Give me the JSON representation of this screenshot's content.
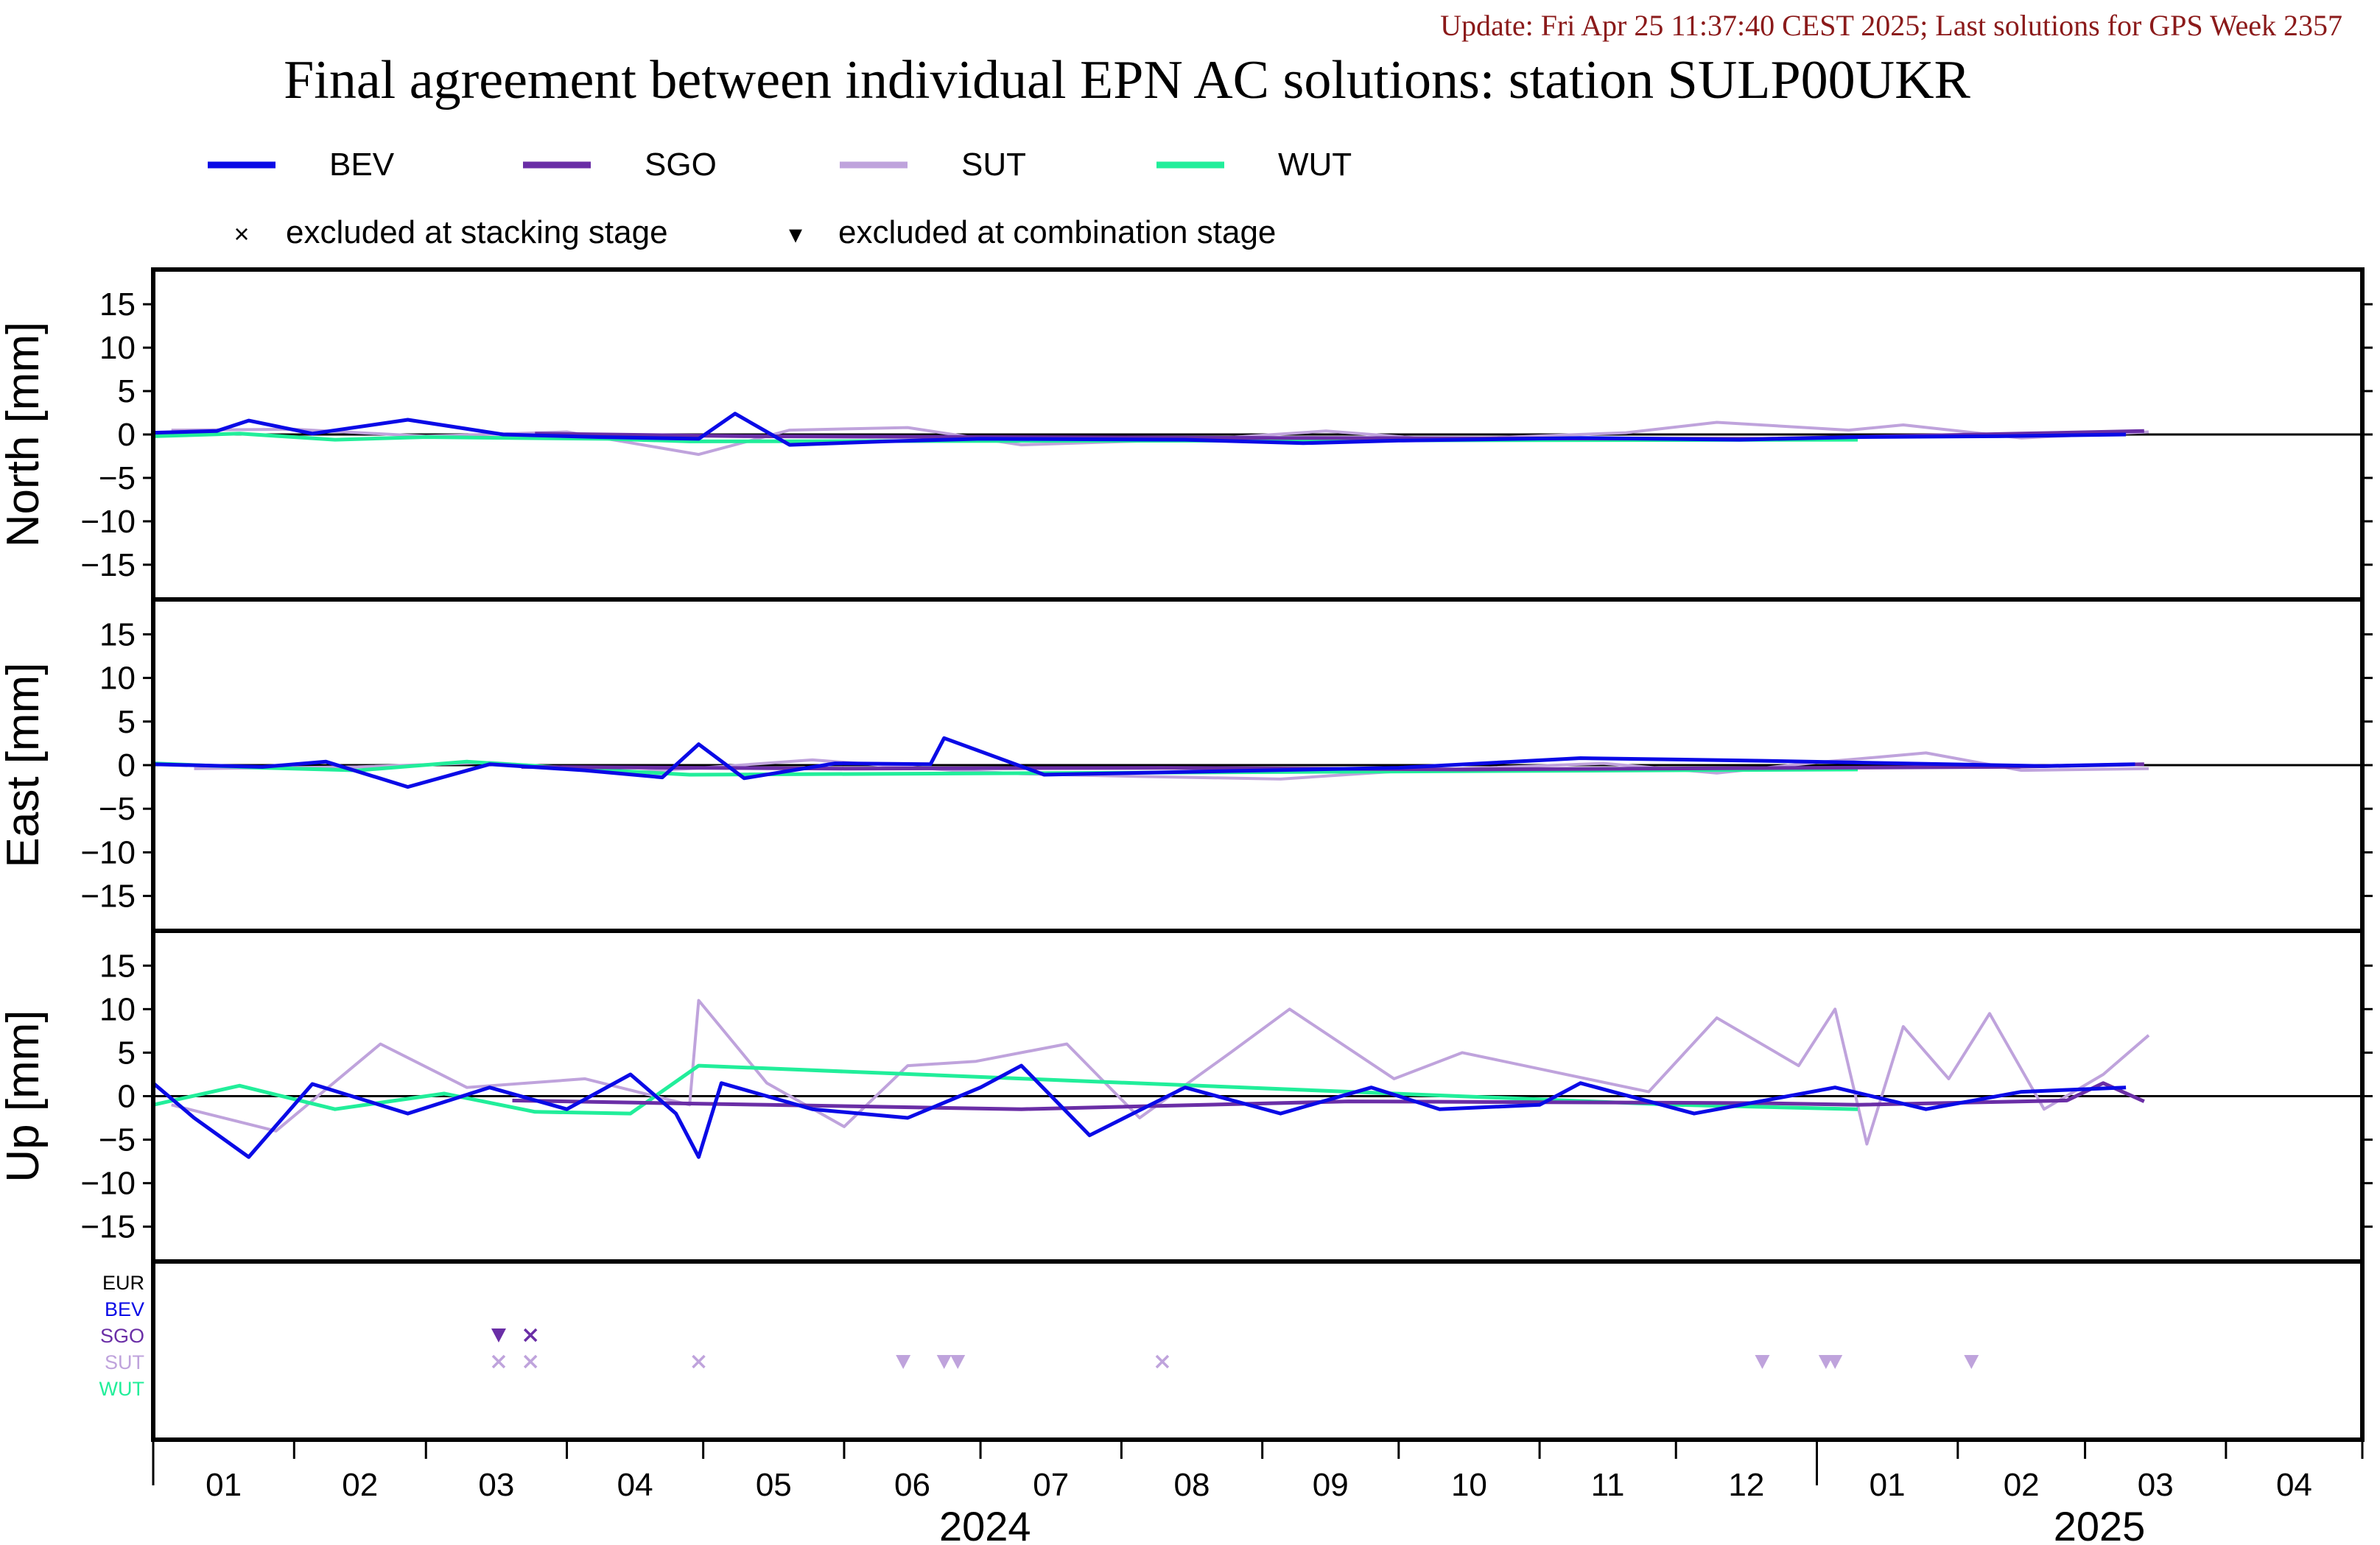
{
  "header": {
    "update_text": "Update: Fri Apr 25 11:37:40 CEST 2025; Last solutions for GPS Week 2357",
    "title": "Final agreement between individual EPN AC solutions: station SULP00UKR"
  },
  "legend": {
    "lines": [
      {
        "name": "BEV",
        "color": "#0a0ae6"
      },
      {
        "name": "SGO",
        "color": "#6a2ea6"
      },
      {
        "name": "SUT",
        "color": "#bfa3dc"
      },
      {
        "name": "WUT",
        "color": "#21ee9a"
      }
    ],
    "markers": [
      {
        "symbol": "×",
        "label": "excluded at stacking stage"
      },
      {
        "symbol": "▾",
        "label": "excluded at combination stage"
      }
    ]
  },
  "exclusion_panel": {
    "rows": [
      {
        "name": "EUR",
        "color": "#000000"
      },
      {
        "name": "BEV",
        "color": "#0a0ae6"
      },
      {
        "name": "SGO",
        "color": "#6a2ea6"
      },
      {
        "name": "SUT",
        "color": "#bfa3dc"
      },
      {
        "name": "WUT",
        "color": "#21ee9a"
      }
    ]
  },
  "x_axis": {
    "month_labels": [
      "01",
      "02",
      "03",
      "04",
      "05",
      "06",
      "07",
      "08",
      "09",
      "10",
      "11",
      "12",
      "01",
      "02",
      "03",
      "04"
    ],
    "year_labels": [
      "2024",
      "2025"
    ]
  },
  "chart_data": [
    {
      "type": "line",
      "panel": "north",
      "ylabel": "North [mm]",
      "ylim": [
        -19,
        19
      ],
      "yticks": [
        15,
        10,
        5,
        0,
        -5,
        -10,
        -15
      ],
      "xlim": [
        "2024-01-01",
        "2025-04-30"
      ],
      "series": [
        {
          "name": "BEV",
          "x": [
            "2024-01-01",
            "2024-01-15",
            "2024-01-22",
            "2024-02-05",
            "2024-02-26",
            "2024-03-18",
            "2024-04-08",
            "2024-04-30",
            "2024-05-08",
            "2024-05-20",
            "2024-06-10",
            "2024-07-01",
            "2024-08-15",
            "2024-09-10",
            "2024-10-01",
            "2024-11-10",
            "2024-12-15",
            "2025-01-10",
            "2025-02-10",
            "2025-03-10"
          ],
          "y": [
            0.2,
            0.4,
            1.6,
            0.1,
            1.7,
            0.0,
            -0.3,
            -0.5,
            2.4,
            -1.2,
            -0.8,
            -0.5,
            -0.6,
            -1.0,
            -0.7,
            -0.4,
            -0.6,
            -0.3,
            -0.2,
            0.0
          ]
        },
        {
          "name": "SGO",
          "x": [
            "2024-03-25",
            "2024-05-10",
            "2024-07-05",
            "2024-09-05",
            "2024-12-20",
            "2025-02-15",
            "2025-03-14"
          ],
          "y": [
            0.1,
            -0.2,
            -0.3,
            -0.4,
            -0.5,
            0.1,
            0.4
          ]
        },
        {
          "name": "SUT",
          "x": [
            "2024-01-05",
            "2024-02-01",
            "2024-03-01",
            "2024-04-01",
            "2024-04-30",
            "2024-05-20",
            "2024-06-15",
            "2024-07-10",
            "2024-08-20",
            "2024-09-15",
            "2024-10-10",
            "2024-11-20",
            "2024-12-10",
            "2025-01-08",
            "2025-01-20",
            "2025-02-15",
            "2025-03-15"
          ],
          "y": [
            0.5,
            0.6,
            -0.2,
            0.3,
            -2.3,
            0.5,
            0.8,
            -1.2,
            -0.5,
            0.4,
            -0.6,
            0.2,
            1.4,
            0.5,
            1.1,
            -0.4,
            0.3
          ]
        },
        {
          "name": "WUT",
          "x": [
            "2024-01-01",
            "2024-01-20",
            "2024-02-10",
            "2024-03-01",
            "2024-03-20",
            "2024-04-10",
            "2024-04-28",
            "2025-01-10"
          ],
          "y": [
            -0.2,
            0.1,
            -0.6,
            -0.3,
            -0.4,
            -0.5,
            -0.8,
            -0.6
          ]
        }
      ]
    },
    {
      "type": "line",
      "panel": "east",
      "ylabel": "East [mm]",
      "ylim": [
        -19,
        19
      ],
      "yticks": [
        15,
        10,
        5,
        0,
        -5,
        -10,
        -15
      ],
      "xlim": [
        "2024-01-01",
        "2025-04-30"
      ],
      "series": [
        {
          "name": "BEV",
          "x": [
            "2024-01-01",
            "2024-01-25",
            "2024-02-08",
            "2024-02-26",
            "2024-03-15",
            "2024-04-05",
            "2024-04-22",
            "2024-04-30",
            "2024-05-10",
            "2024-05-30",
            "2024-06-20",
            "2024-06-23",
            "2024-07-15",
            "2024-09-01",
            "2024-10-01",
            "2024-11-10",
            "2024-12-20",
            "2025-02-20",
            "2025-03-12"
          ],
          "y": [
            0.1,
            -0.2,
            0.4,
            -2.5,
            0.1,
            -0.6,
            -1.4,
            2.4,
            -1.5,
            0.2,
            0.1,
            3.1,
            -1.1,
            -0.6,
            -0.3,
            0.8,
            0.5,
            -0.1,
            0.1
          ]
        },
        {
          "name": "SGO",
          "x": [
            "2024-03-22",
            "2024-06-01",
            "2024-08-10",
            "2024-10-15",
            "2025-02-12",
            "2025-03-14"
          ],
          "y": [
            -0.2,
            -0.4,
            -0.3,
            -0.5,
            -0.2,
            0.1
          ]
        },
        {
          "name": "SUT",
          "x": [
            "2024-01-10",
            "2024-02-15",
            "2024-03-15",
            "2024-04-15",
            "2024-05-01",
            "2024-05-25",
            "2024-06-25",
            "2024-07-10",
            "2024-08-05",
            "2024-09-05",
            "2024-10-01",
            "2024-11-15",
            "2024-12-10",
            "2025-01-01",
            "2025-01-25",
            "2025-02-15",
            "2025-03-15"
          ],
          "y": [
            -0.4,
            -0.2,
            0.3,
            -0.8,
            -0.3,
            0.6,
            -0.6,
            -1.0,
            -1.3,
            -1.6,
            -0.7,
            0.2,
            -0.9,
            0.3,
            1.4,
            -0.6,
            -0.4
          ]
        },
        {
          "name": "WUT",
          "x": [
            "2024-01-01",
            "2024-01-25",
            "2024-02-15",
            "2024-03-10",
            "2024-04-10",
            "2024-04-28",
            "2024-11-25",
            "2025-01-10"
          ],
          "y": [
            0.2,
            -0.3,
            -0.6,
            0.4,
            -0.6,
            -1.1,
            -0.6,
            -0.5
          ]
        }
      ]
    },
    {
      "type": "line",
      "panel": "up",
      "ylabel": "Up [mm]",
      "ylim": [
        -19,
        19
      ],
      "yticks": [
        15,
        10,
        5,
        0,
        -5,
        -10,
        -15
      ],
      "xlim": [
        "2024-01-01",
        "2025-04-30"
      ],
      "series": [
        {
          "name": "BEV",
          "x": [
            "2024-01-01",
            "2024-01-10",
            "2024-01-22",
            "2024-02-05",
            "2024-02-26",
            "2024-03-15",
            "2024-04-01",
            "2024-04-15",
            "2024-04-25",
            "2024-04-30",
            "2024-05-05",
            "2024-05-25",
            "2024-06-15",
            "2024-07-01",
            "2024-07-10",
            "2024-07-25",
            "2024-08-15",
            "2024-09-05",
            "2024-09-25",
            "2024-10-10",
            "2024-11-01",
            "2024-11-10",
            "2024-12-05",
            "2025-01-05",
            "2025-01-25",
            "2025-02-15",
            "2025-03-10"
          ],
          "y": [
            1.5,
            -2.5,
            -7.0,
            1.4,
            -2.0,
            1.0,
            -1.5,
            2.5,
            -2.0,
            -7.0,
            1.5,
            -1.5,
            -2.5,
            1.0,
            3.5,
            -4.5,
            1.0,
            -2.0,
            1.0,
            -1.5,
            -1.0,
            1.5,
            -2.0,
            1.0,
            -1.5,
            0.5,
            1.0
          ]
        },
        {
          "name": "SGO",
          "x": [
            "2024-03-20",
            "2024-05-15",
            "2024-07-10",
            "2024-09-20",
            "2024-12-20",
            "2025-01-10",
            "2025-02-25",
            "2025-03-05",
            "2025-03-14"
          ],
          "y": [
            -0.5,
            -1.0,
            -1.5,
            -0.6,
            -0.8,
            -1.0,
            -0.5,
            1.5,
            -0.6
          ]
        },
        {
          "name": "SUT",
          "x": [
            "2024-01-05",
            "2024-01-28",
            "2024-02-20",
            "2024-03-10",
            "2024-04-05",
            "2024-04-28",
            "2024-04-30",
            "2024-05-15",
            "2024-06-01",
            "2024-06-15",
            "2024-06-30",
            "2024-07-20",
            "2024-08-05",
            "2024-08-25",
            "2024-09-07",
            "2024-09-30",
            "2024-10-15",
            "2024-11-25",
            "2024-12-10",
            "2024-12-28",
            "2025-01-05",
            "2025-01-12",
            "2025-01-20",
            "2025-01-30",
            "2025-02-08",
            "2025-02-20",
            "2025-03-05",
            "2025-03-15"
          ],
          "y": [
            -1.0,
            -4.0,
            6.0,
            1.0,
            2.0,
            -1.0,
            11.0,
            1.5,
            -3.5,
            3.5,
            4.0,
            6.0,
            -2.5,
            5.0,
            10.0,
            2.0,
            5.0,
            0.5,
            9.0,
            3.5,
            10.0,
            -5.5,
            8.0,
            2.0,
            9.5,
            -1.5,
            2.5,
            7.0
          ]
        },
        {
          "name": "WUT",
          "x": [
            "2024-01-01",
            "2024-01-20",
            "2024-02-10",
            "2024-03-05",
            "2024-03-25",
            "2024-04-15",
            "2024-04-30",
            "2024-12-01",
            "2025-01-10"
          ],
          "y": [
            -1.0,
            1.2,
            -1.5,
            0.3,
            -1.8,
            -2.0,
            3.5,
            -1.0,
            -1.5
          ]
        }
      ]
    },
    {
      "type": "scatter",
      "panel": "exclusions",
      "categories": [
        "EUR",
        "BEV",
        "SGO",
        "SUT",
        "WUT"
      ],
      "xlim": [
        "2024-01-01",
        "2025-04-30"
      ],
      "points": [
        {
          "row": "SGO",
          "date": "2024-03-17",
          "marker": "combination"
        },
        {
          "row": "SGO",
          "date": "2024-03-24",
          "marker": "stacking"
        },
        {
          "row": "SUT",
          "date": "2024-03-17",
          "marker": "stacking"
        },
        {
          "row": "SUT",
          "date": "2024-03-24",
          "marker": "stacking"
        },
        {
          "row": "SUT",
          "date": "2024-04-30",
          "marker": "stacking"
        },
        {
          "row": "SUT",
          "date": "2024-06-14",
          "marker": "combination"
        },
        {
          "row": "SUT",
          "date": "2024-06-23",
          "marker": "combination"
        },
        {
          "row": "SUT",
          "date": "2024-06-26",
          "marker": "combination"
        },
        {
          "row": "SUT",
          "date": "2024-08-10",
          "marker": "stacking"
        },
        {
          "row": "SUT",
          "date": "2024-12-20",
          "marker": "combination"
        },
        {
          "row": "SUT",
          "date": "2025-01-03",
          "marker": "combination"
        },
        {
          "row": "SUT",
          "date": "2025-01-05",
          "marker": "combination"
        },
        {
          "row": "SUT",
          "date": "2025-02-04",
          "marker": "combination"
        }
      ]
    }
  ]
}
